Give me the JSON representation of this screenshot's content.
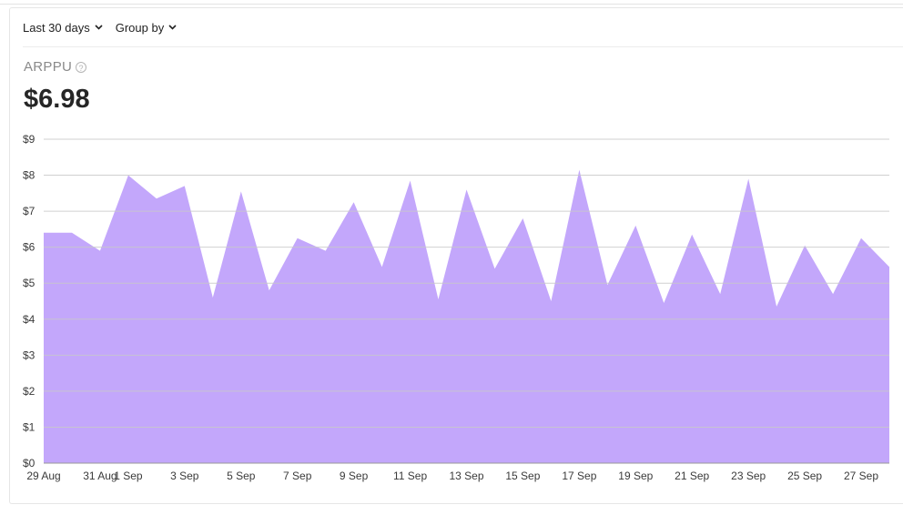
{
  "toolbar": {
    "range_label": "Last 30 days",
    "group_label": "Group by"
  },
  "metric": {
    "name": "ARPPU",
    "help_glyph": "?",
    "value": "$6.98"
  },
  "colors": {
    "area_fill": "#c3a7fb",
    "grid": "#c8c8c8"
  },
  "chart_data": {
    "type": "area",
    "x": [
      "29 Aug",
      "30 Aug",
      "31 Aug",
      "1 Sep",
      "2 Sep",
      "3 Sep",
      "4 Sep",
      "5 Sep",
      "6 Sep",
      "7 Sep",
      "8 Sep",
      "9 Sep",
      "10 Sep",
      "11 Sep",
      "12 Sep",
      "13 Sep",
      "14 Sep",
      "15 Sep",
      "16 Sep",
      "17 Sep",
      "18 Sep",
      "19 Sep",
      "20 Sep",
      "21 Sep",
      "22 Sep",
      "23 Sep",
      "24 Sep",
      "25 Sep",
      "26 Sep",
      "27 Sep",
      "28 Sep"
    ],
    "x_tick_labels": [
      "29 Aug",
      "31 Aug",
      "1 Sep",
      "3 Sep",
      "5 Sep",
      "7 Sep",
      "9 Sep",
      "11 Sep",
      "13 Sep",
      "15 Sep",
      "17 Sep",
      "19 Sep",
      "21 Sep",
      "23 Sep",
      "25 Sep",
      "27 Sep"
    ],
    "series": [
      {
        "values": [
          6.4,
          6.4,
          5.9,
          8.0,
          7.35,
          7.7,
          4.6,
          7.55,
          4.8,
          6.25,
          5.9,
          7.25,
          5.45,
          7.85,
          4.55,
          7.6,
          5.4,
          6.8,
          4.5,
          8.15,
          4.95,
          6.6,
          4.45,
          6.35,
          4.7,
          7.9,
          4.35,
          6.05,
          4.7,
          6.25,
          5.45
        ]
      }
    ],
    "y_ticks": [
      "$0",
      "$1",
      "$2",
      "$3",
      "$4",
      "$5",
      "$6",
      "$7",
      "$8",
      "$9"
    ],
    "ylim": [
      0,
      9
    ],
    "grid": true
  }
}
